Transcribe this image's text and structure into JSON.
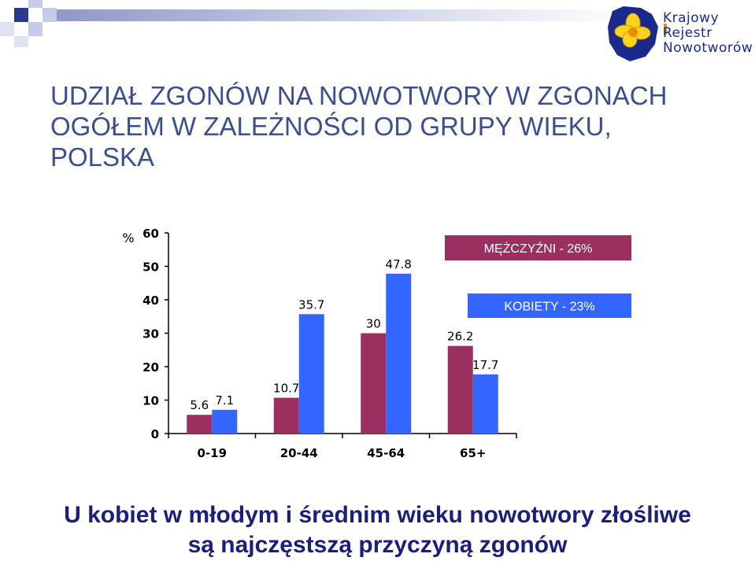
{
  "title": "UDZIAŁ ZGONÓW NA NOWOTWORY W ZGONACH OGÓŁEM W ZALEŻNOŚCI OD GRUPY WIEKU, POLSKA",
  "logo": {
    "line1": "Krajowy",
    "line2": "Rejestr",
    "line3": "Nowotworów"
  },
  "footer": {
    "line1": "U kobiet  w młodym i średnim wieku nowotwory złośliwe",
    "line2": "są najczęstszą przyczyną zgonów"
  },
  "chart_data": {
    "type": "bar",
    "ylabel": "%",
    "ylim": [
      0,
      60
    ],
    "yticks": [
      0,
      10,
      20,
      30,
      40,
      50,
      60
    ],
    "categories": [
      "0-19",
      "20-44",
      "45-64",
      "65+"
    ],
    "series": [
      {
        "name": "MĘŻCZYŹNI - 26%",
        "color": "#9b3060",
        "values": [
          5.6,
          10.7,
          30,
          26.2
        ]
      },
      {
        "name": "KOBIETY - 23%",
        "color": "#3366ff",
        "values": [
          7.1,
          35.7,
          47.8,
          17.7
        ]
      }
    ],
    "data_labels": [
      [
        "5.6",
        "10.7",
        "30",
        "26.2"
      ],
      [
        "7.1",
        "35.7",
        "47.8",
        "17.7"
      ]
    ],
    "legend_placement": "right, inside plot"
  },
  "colors": {
    "title": "#3b4f8f",
    "footer": "#1a1f7a",
    "male": "#9b3060",
    "female": "#3366ff"
  }
}
